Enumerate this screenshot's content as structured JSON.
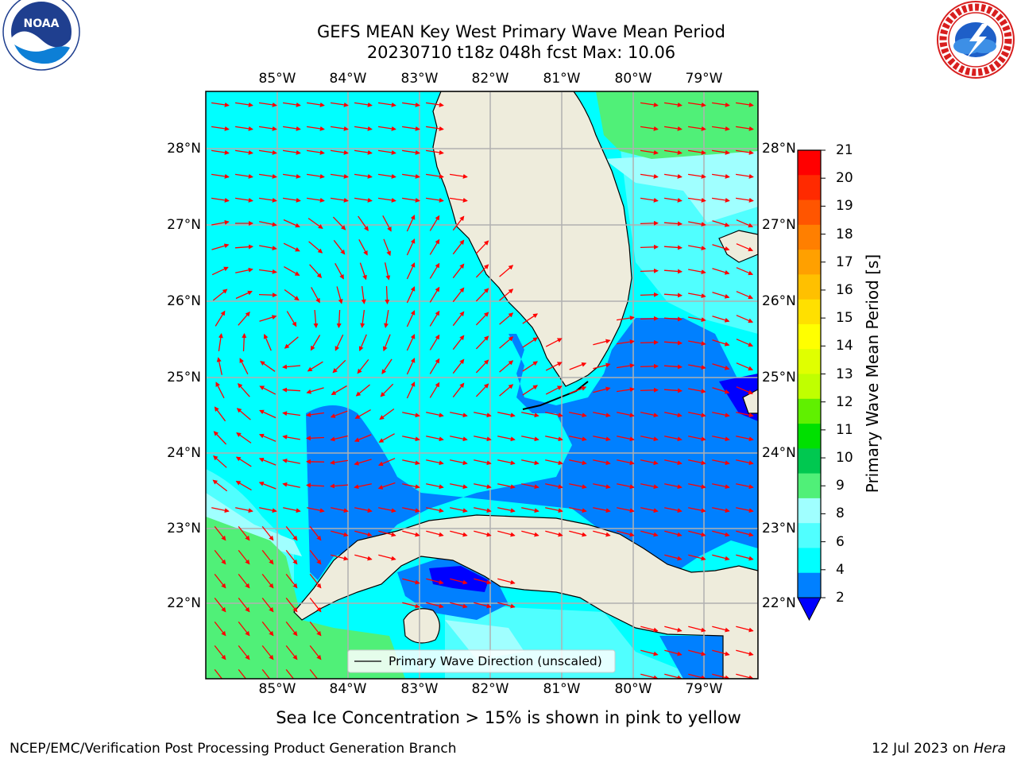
{
  "header": {
    "title_line1": "GEFS MEAN Key West Primary Wave Mean Period",
    "title_line2": "20230710 t18z 048h fcst   Max: 10.06"
  },
  "map": {
    "lon_labels": [
      "85°W",
      "84°W",
      "83°W",
      "82°W",
      "81°W",
      "80°W",
      "79°W"
    ],
    "lat_labels": [
      "28°N",
      "27°N",
      "26°N",
      "25°N",
      "24°N",
      "23°N",
      "22°N"
    ],
    "legend_label": "Primary Wave Direction (unscaled)",
    "arrow_color": "#ff0000",
    "land_color": "#eeecdc",
    "grid_color": "#b0b0b0"
  },
  "colorbar": {
    "label": "Primary Wave Mean Period [s]",
    "ticks": [
      "21",
      "20",
      "19",
      "18",
      "17",
      "16",
      "15",
      "14",
      "13",
      "12",
      "11",
      "10",
      "9",
      "8",
      "6",
      "4",
      "2"
    ],
    "colors": [
      "#ff0000",
      "#ff2a00",
      "#ff5500",
      "#ff7f00",
      "#ffa000",
      "#ffc000",
      "#ffe000",
      "#ffff00",
      "#e0ff00",
      "#c0ff00",
      "#60f000",
      "#00e000",
      "#00c850",
      "#50f078",
      "#a0ffff",
      "#50ffff",
      "#00ffff",
      "#0080ff",
      "#0000ff"
    ]
  },
  "chart_data": {
    "type": "heatmap",
    "title": "GEFS MEAN Key West Primary Wave Mean Period",
    "forecast": "20230710 t18z 048h fcst",
    "max": 10.06,
    "units": "s",
    "lon_range": [
      "86°W",
      "78.4°W"
    ],
    "lat_range": [
      "21°N",
      "28.7°N"
    ],
    "levels": [
      2,
      4,
      6,
      8,
      9,
      10,
      11,
      12,
      13,
      14,
      15,
      16,
      17,
      18,
      19,
      20,
      21
    ]
  },
  "footer": {
    "subtitle": "Sea Ice Concentration > 15% is shown in pink to yellow",
    "left": "NCEP/EMC/Verification Post Processing Product Generation Branch",
    "date": "12 Jul 2023 on",
    "machine": "Hera"
  },
  "logos": {
    "noaa_text": "NOAA",
    "noaa_ring": "NATIONAL OCEANIC AND ATMOSPHERIC ADMINISTRATION · U.S. DEPARTMENT OF COMMERCE",
    "nws_ring": "NATIONAL WEATHER SERVICE"
  }
}
